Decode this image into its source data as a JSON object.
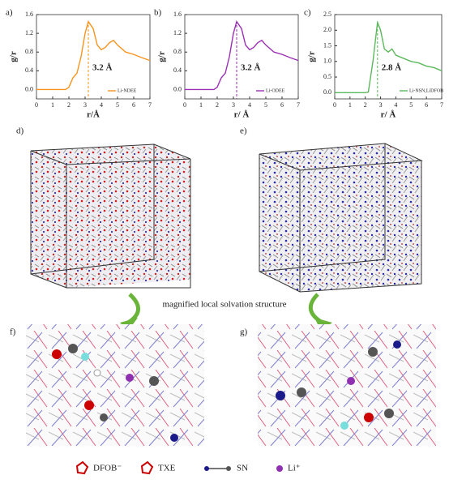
{
  "chart_data": [
    {
      "type": "line",
      "title": "a)",
      "xlabel": "r/Å",
      "ylabel": "g/r",
      "x": [
        0,
        1,
        1.8,
        2,
        2.25,
        2.5,
        2.75,
        3,
        3.2,
        3.5,
        3.75,
        4,
        4.25,
        4.5,
        4.75,
        5,
        5.5,
        6,
        6.5,
        7
      ],
      "series": [
        {
          "name": "Li-NDEE",
          "color": "#f7941d",
          "values": [
            0,
            0,
            0,
            0.05,
            0.25,
            0.35,
            0.7,
            1.2,
            1.45,
            1.3,
            0.95,
            0.85,
            0.9,
            1.0,
            1.05,
            0.95,
            0.8,
            0.75,
            0.68,
            0.62
          ]
        }
      ],
      "annotation": {
        "text": "3.2 Å",
        "x": 3.2
      },
      "xlim": [
        0,
        7
      ],
      "xticks": [
        0,
        1,
        2,
        3,
        4,
        5,
        6,
        7
      ],
      "ylim": [
        -0.2,
        1.6
      ],
      "yticks": [
        {
          "value": 0,
          "label": "0.0"
        },
        {
          "value": 0.4,
          "label": "0.4"
        },
        {
          "value": 0.8,
          "label": "0.8"
        },
        {
          "value": 1.2,
          "label": "1.2"
        },
        {
          "value": 1.6,
          "label": "1.6"
        }
      ]
    },
    {
      "type": "line",
      "title": "b)",
      "xlabel": "r/ Å",
      "ylabel": "g/r",
      "x": [
        0,
        1,
        1.8,
        2,
        2.25,
        2.5,
        2.75,
        3,
        3.2,
        3.5,
        3.75,
        4,
        4.25,
        4.5,
        4.75,
        5,
        5.5,
        6,
        6.5,
        7
      ],
      "series": [
        {
          "name": "Li-ODEE",
          "color": "#9b30b5",
          "values": [
            0,
            0,
            0,
            0.05,
            0.25,
            0.35,
            0.7,
            1.2,
            1.45,
            1.3,
            0.95,
            0.85,
            0.9,
            1.0,
            1.05,
            0.95,
            0.8,
            0.75,
            0.68,
            0.62
          ]
        }
      ],
      "annotation": {
        "text": "3.2 Å",
        "x": 3.2
      },
      "xlim": [
        0,
        7
      ],
      "xticks": [
        0,
        1,
        2,
        3,
        4,
        5,
        6,
        7
      ],
      "ylim": [
        -0.2,
        1.6
      ],
      "yticks": [
        {
          "value": 0,
          "label": "0.0"
        },
        {
          "value": 0.4,
          "label": "0.4"
        },
        {
          "value": 0.8,
          "label": "0.8"
        },
        {
          "value": 1.2,
          "label": "1.2"
        },
        {
          "value": 1.6,
          "label": "1.6"
        }
      ]
    },
    {
      "type": "line",
      "title": "c)",
      "xlabel": "r/ Å",
      "ylabel": "g/r",
      "x": [
        0,
        1,
        2,
        2.2,
        2.5,
        2.8,
        3,
        3.25,
        3.5,
        3.75,
        4,
        4.5,
        5,
        5.5,
        6,
        6.5,
        7
      ],
      "series": [
        {
          "name": "Li-NSN,LiDFOB",
          "color": "#5cb85c",
          "values": [
            0,
            0,
            0,
            0.02,
            1.0,
            2.25,
            2.0,
            1.4,
            1.3,
            1.4,
            1.2,
            1.1,
            1.0,
            0.95,
            0.85,
            0.8,
            0.7
          ]
        }
      ],
      "annotation": {
        "text": "2.8 Å",
        "x": 2.8
      },
      "xlim": [
        0,
        7
      ],
      "xticks": [
        0,
        1,
        2,
        3,
        4,
        5,
        6,
        7
      ],
      "ylim": [
        -0.2,
        2.5
      ],
      "yticks": [
        {
          "value": 0,
          "label": "0.0"
        },
        {
          "value": 0.5,
          "label": "0.5"
        },
        {
          "value": 1,
          "label": "1.0"
        },
        {
          "value": 1.5,
          "label": "1.5"
        },
        {
          "value": 2,
          "label": "2.0"
        },
        {
          "value": 2.5,
          "label": "2.5"
        }
      ]
    }
  ],
  "figure": {
    "panels": [
      "d)",
      "e)",
      "f)",
      "g)"
    ],
    "caption": "magnified local solvation structure",
    "legend": [
      "DFOB⁻",
      "TXE",
      "SN",
      "Li⁺"
    ]
  }
}
